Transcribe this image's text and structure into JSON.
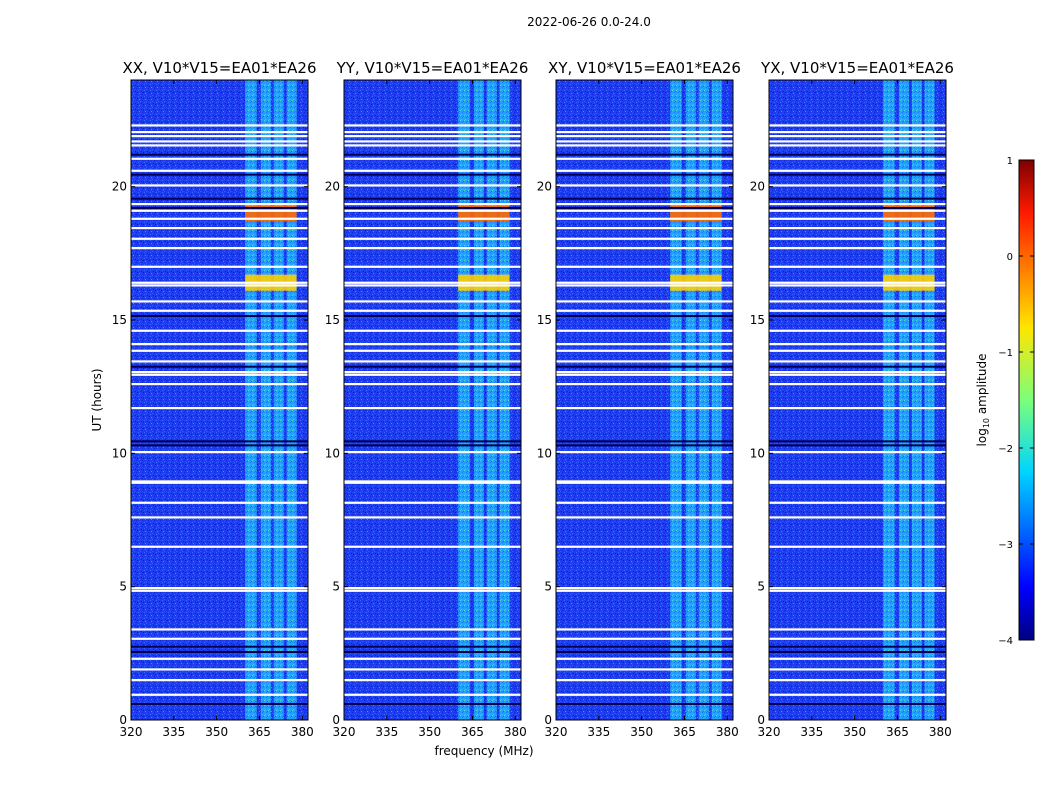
{
  "chart_data": {
    "type": "heatmap",
    "suptitle": "2022-06-26 0.0-24.0",
    "xlabel": "frequency (MHz)",
    "ylabel": "UT (hours)",
    "xlim": [
      320,
      382
    ],
    "ylim": [
      0,
      24
    ],
    "xticks": [
      320,
      335,
      350,
      365,
      380
    ],
    "yticks": [
      0,
      5,
      10,
      15,
      20
    ],
    "panels": [
      {
        "title": "XX, V10*V15=EA01*EA26"
      },
      {
        "title": "YY, V10*V15=EA01*EA26"
      },
      {
        "title": "XY, V10*V15=EA01*EA26"
      },
      {
        "title": "YX, V10*V15=EA01*EA26"
      }
    ],
    "colorbar": {
      "label_prefix": "log",
      "label_sub": "10",
      "label_suffix": " amplitude",
      "vmin": -4,
      "vmax": 1,
      "ticks": [
        "1",
        "0",
        "−1",
        "−2",
        "−3",
        "−4"
      ],
      "colormap": "jet"
    },
    "rfi_band_mhz": [
      360,
      378
    ],
    "rfi_subbands_mhz": [
      [
        360,
        364
      ],
      [
        365.5,
        369
      ],
      [
        370,
        373.5
      ],
      [
        374.5,
        378
      ]
    ],
    "flagged_rows_hours": [
      0.95,
      1.5,
      1.9,
      2.3,
      3.05,
      3.4,
      4.85,
      4.95,
      6.5,
      7.6,
      8.15,
      8.9,
      8.95,
      10.05,
      11.7,
      12.6,
      12.95,
      13.05,
      13.45,
      13.85,
      14.1,
      14.6,
      15.35,
      15.7,
      16.3,
      16.4,
      17.0,
      17.7,
      18.05,
      18.45,
      18.8,
      19.1,
      19.35,
      20.05,
      20.6,
      21.05,
      21.55,
      21.7,
      21.9,
      22.05,
      22.3
    ],
    "dark_rows_hours": [
      0.6,
      2.55,
      2.75,
      10.3,
      10.45,
      13.25,
      15.15,
      19.2,
      19.55,
      20.45,
      21.2
    ],
    "bright_rows_hours": [
      [
        18.7,
        19.3,
        0.0
      ],
      [
        16.1,
        16.7,
        -0.6
      ]
    ]
  }
}
